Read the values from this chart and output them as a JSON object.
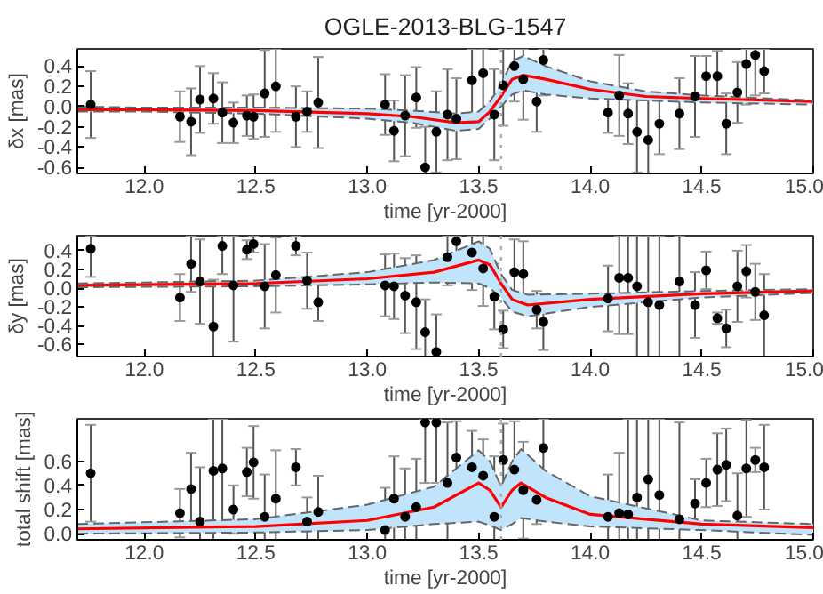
{
  "chart_data": [
    {
      "type": "scatter",
      "title": "OGLE-2013-BLG-1547",
      "xlabel": "time [yr-2000]",
      "ylabel": "δx [mas]",
      "xlim": [
        11.7,
        15.0
      ],
      "ylim": [
        -0.66,
        0.57
      ],
      "xticks": [
        {
          "value": 12,
          "label": "12.0"
        },
        {
          "value": 12.5,
          "label": "12.5"
        },
        {
          "value": 13,
          "label": "13.0"
        },
        {
          "value": 13.5,
          "label": "13.5"
        },
        {
          "value": 14,
          "label": "14.0"
        },
        {
          "value": 14.5,
          "label": "14.5"
        },
        {
          "value": 15,
          "label": "15.0"
        }
      ],
      "yticks": [
        {
          "value": -0.6,
          "label": "-0.6"
        },
        {
          "value": -0.4,
          "label": "-0.4"
        },
        {
          "value": -0.2,
          "label": "-0.2"
        },
        {
          "value": 0,
          "label": "0.0"
        },
        {
          "value": 0.2,
          "label": "0.2"
        },
        {
          "value": 0.4,
          "label": "0.4"
        }
      ],
      "marker": "circle",
      "grid": false,
      "ref_lines": [
        {
          "axis": "x",
          "value": 13.6,
          "color": "#aaaaaa",
          "line_style": "dotted"
        }
      ],
      "series": [
        {
          "type": "line",
          "color": "#ff0000",
          "marker": "none",
          "x": [
            11.7,
            12.0,
            12.5,
            13.0,
            13.2,
            13.4,
            13.5,
            13.55,
            13.6,
            13.65,
            13.7,
            13.8,
            14.0,
            14.25,
            14.5,
            15.0
          ],
          "values": [
            -0.03,
            -0.03,
            -0.04,
            -0.07,
            -0.1,
            -0.16,
            -0.15,
            -0.05,
            0.1,
            0.27,
            0.31,
            0.27,
            0.17,
            0.1,
            0.08,
            0.05
          ],
          "lower": [
            -0.05,
            -0.05,
            -0.07,
            -0.12,
            -0.16,
            -0.24,
            -0.22,
            -0.12,
            0.0,
            0.12,
            0.16,
            0.12,
            0.08,
            0.06,
            0.04,
            0.02
          ],
          "upper": [
            0.0,
            -0.01,
            -0.01,
            -0.02,
            -0.04,
            -0.07,
            -0.05,
            0.05,
            0.22,
            0.45,
            0.5,
            0.4,
            0.25,
            0.15,
            0.11,
            0.06
          ]
        },
        {
          "type": "line",
          "color": "#666666",
          "line_style": "dashed",
          "marker": "none",
          "x": [
            11.7,
            12.0,
            12.5,
            13.0,
            13.2,
            13.4,
            13.5,
            13.55,
            13.6,
            13.65,
            13.7,
            13.8,
            14.0,
            14.25,
            14.5,
            15.0
          ],
          "values": [
            -0.05,
            -0.05,
            -0.07,
            -0.12,
            -0.16,
            -0.24,
            -0.22,
            -0.12,
            0.0,
            0.12,
            0.16,
            0.12,
            0.08,
            0.06,
            0.04,
            0.02
          ]
        },
        {
          "type": "line",
          "color": "#666666",
          "line_style": "dashed",
          "marker": "none",
          "x": [
            11.7,
            12.0,
            12.5,
            13.0,
            13.2,
            13.4,
            13.5,
            13.55,
            13.6,
            13.65,
            13.7,
            13.8,
            14.0,
            14.25,
            14.5,
            15.0
          ],
          "values": [
            0.0,
            -0.01,
            -0.01,
            -0.02,
            -0.04,
            -0.07,
            -0.05,
            0.05,
            0.22,
            0.45,
            0.5,
            0.4,
            0.25,
            0.15,
            0.11,
            0.06
          ]
        },
        {
          "color": "#000000",
          "x": [
            11.76,
            12.16,
            12.21,
            12.25,
            12.31,
            12.35,
            12.4,
            12.46,
            12.49,
            12.54,
            12.59,
            12.68,
            12.73,
            12.78,
            13.08,
            13.12,
            13.17,
            13.22,
            13.26,
            13.31,
            13.36,
            13.4,
            13.47,
            13.52,
            13.57,
            13.61,
            13.66,
            13.7,
            13.76,
            13.79,
            14.08,
            14.13,
            14.17,
            14.21,
            14.26,
            14.31,
            14.4,
            14.47,
            14.52,
            14.57,
            14.61,
            14.66,
            14.7,
            14.74,
            14.78
          ],
          "values": [
            0.02,
            -0.1,
            -0.15,
            0.07,
            0.08,
            -0.06,
            -0.16,
            -0.09,
            -0.1,
            0.13,
            0.2,
            -0.1,
            -0.05,
            0.04,
            0.02,
            -0.24,
            -0.09,
            0.09,
            -0.6,
            -0.25,
            -0.08,
            -0.12,
            0.26,
            0.33,
            -0.08,
            0.21,
            0.4,
            0.27,
            0.05,
            0.46,
            -0.06,
            0.11,
            -0.07,
            -0.25,
            -0.33,
            -0.17,
            -0.07,
            0.1,
            0.3,
            0.3,
            -0.17,
            0.14,
            0.42,
            0.51,
            0.35
          ],
          "errors": [
            0.33,
            0.25,
            0.33,
            0.33,
            0.25,
            0.3,
            0.2,
            0.2,
            0.22,
            0.43,
            [
              -0.25,
              0.57
            ],
            0.3,
            0.2,
            0.45,
            0.3,
            0.3,
            0.4,
            0.3,
            [
              -0.66,
              -0.2
            ],
            0.4,
            0.45,
            0.4,
            [
              -0.14,
              0.57
            ],
            [
              -0.07,
              0.57
            ],
            0.45,
            [
              -0.19,
              0.57
            ],
            [
              0.05,
              0.57
            ],
            [
              -0.13,
              0.57
            ],
            0.3,
            [
              0.11,
              0.57
            ],
            0.2,
            0.4,
            0.3,
            0.4,
            [
              -0.66,
              0.07
            ],
            0.3,
            0.35,
            0.4,
            0.2,
            0.25,
            0.3,
            0.3,
            [
              0.02,
              0.57
            ],
            [
              0.11,
              0.57
            ],
            0.22
          ]
        }
      ]
    },
    {
      "type": "scatter",
      "xlabel": "time [yr-2000]",
      "ylabel": "δy [mas]",
      "xlim": [
        11.7,
        15.0
      ],
      "ylim": [
        -0.73,
        0.56
      ],
      "xticks": [
        {
          "value": 12,
          "label": "12.0"
        },
        {
          "value": 12.5,
          "label": "12.5"
        },
        {
          "value": 13,
          "label": "13.0"
        },
        {
          "value": 13.5,
          "label": "13.5"
        },
        {
          "value": 14,
          "label": "14.0"
        },
        {
          "value": 14.5,
          "label": "14.5"
        },
        {
          "value": 15,
          "label": "15.0"
        }
      ],
      "yticks": [
        {
          "value": -0.6,
          "label": "-0.6"
        },
        {
          "value": -0.4,
          "label": "-0.4"
        },
        {
          "value": -0.2,
          "label": "-0.2"
        },
        {
          "value": 0,
          "label": "0.0"
        },
        {
          "value": 0.2,
          "label": "0.2"
        },
        {
          "value": 0.4,
          "label": "0.4"
        }
      ],
      "marker": "circle",
      "grid": false,
      "ref_lines": [
        {
          "axis": "x",
          "value": 13.6,
          "color": "#aaaaaa",
          "line_style": "dotted"
        }
      ],
      "series": [
        {
          "type": "line",
          "color": "#ff0000",
          "marker": "none",
          "x": [
            11.7,
            12.5,
            13.0,
            13.3,
            13.5,
            13.55,
            13.6,
            13.65,
            13.72,
            14.0,
            14.5,
            15.0
          ],
          "values": [
            0.03,
            0.05,
            0.1,
            0.17,
            0.3,
            0.25,
            0.05,
            -0.12,
            -0.18,
            -0.12,
            -0.06,
            -0.03
          ],
          "lower": [
            0.01,
            0.02,
            0.04,
            0.06,
            0.05,
            0.0,
            -0.1,
            -0.25,
            -0.3,
            -0.2,
            -0.1,
            -0.05
          ],
          "upper": [
            0.05,
            0.08,
            0.17,
            0.3,
            0.5,
            0.42,
            0.15,
            -0.02,
            -0.07,
            -0.06,
            -0.03,
            -0.01
          ]
        },
        {
          "type": "line",
          "color": "#666666",
          "line_style": "dashed",
          "marker": "none",
          "x": [
            11.7,
            12.5,
            13.0,
            13.3,
            13.5,
            13.55,
            13.6,
            13.65,
            13.72,
            14.0,
            14.5,
            15.0
          ],
          "values": [
            0.01,
            0.02,
            0.04,
            0.06,
            0.05,
            0.0,
            -0.1,
            -0.25,
            -0.3,
            -0.2,
            -0.1,
            -0.05
          ]
        },
        {
          "type": "line",
          "color": "#666666",
          "line_style": "dashed",
          "marker": "none",
          "x": [
            11.7,
            12.5,
            13.0,
            13.3,
            13.5,
            13.55,
            13.6,
            13.65,
            13.72,
            14.0,
            14.5,
            15.0
          ],
          "values": [
            0.05,
            0.08,
            0.17,
            0.3,
            0.5,
            0.42,
            0.15,
            -0.02,
            -0.07,
            -0.06,
            -0.03,
            -0.01
          ]
        },
        {
          "color": "#000000",
          "x": [
            11.76,
            12.16,
            12.21,
            12.25,
            12.31,
            12.35,
            12.4,
            12.46,
            12.49,
            12.54,
            12.59,
            12.68,
            12.73,
            12.78,
            13.08,
            13.12,
            13.17,
            13.22,
            13.26,
            13.31,
            13.36,
            13.4,
            13.47,
            13.52,
            13.57,
            13.61,
            13.66,
            13.7,
            13.76,
            13.79,
            14.08,
            14.13,
            14.17,
            14.21,
            14.26,
            14.31,
            14.4,
            14.47,
            14.52,
            14.57,
            14.61,
            14.66,
            14.7,
            14.74,
            14.78
          ],
          "values": [
            0.42,
            -0.1,
            0.26,
            0.07,
            -0.41,
            0.45,
            0.03,
            0.41,
            0.47,
            0.02,
            0.14,
            0.45,
            0.08,
            -0.15,
            0.03,
            0.02,
            -0.08,
            -0.15,
            -0.47,
            -0.68,
            0.33,
            0.5,
            0.38,
            0.21,
            -0.09,
            -0.44,
            0.17,
            0.15,
            -0.23,
            -0.36,
            -0.11,
            0.11,
            0.11,
            0.02,
            -0.15,
            -0.18,
            0.07,
            -0.18,
            0.19,
            -0.32,
            -0.43,
            0.02,
            0.18,
            -0.04,
            -0.29
          ],
          "errors": [
            [
              0.12,
              0.56
            ],
            0.25,
            0.3,
            0.45,
            [
              -0.73,
              0.09
            ],
            [
              0.15,
              0.56
            ],
            [
              -0.57,
              0.56
            ],
            0.1,
            0.09,
            0.45,
            0.4,
            0.1,
            0.3,
            0.2,
            0.33,
            0.35,
            0.4,
            0.5,
            [
              -0.73,
              -0.12
            ],
            [
              -0.73,
              -0.28
            ],
            [
              0.03,
              0.56
            ],
            [
              0.2,
              0.56
            ],
            [
              -0.02,
              0.56
            ],
            [
              -0.19,
              0.56
            ],
            0.35,
            0.2,
            0.35,
            0.35,
            0.2,
            0.3,
            0.35,
            [
              -0.49,
              0.56
            ],
            [
              -0.49,
              0.56
            ],
            [
              -0.73,
              0.56
            ],
            [
              -0.73,
              0.56
            ],
            [
              -0.73,
              0.56
            ],
            [
              -0.73,
              0.56
            ],
            0.35,
            0.2,
            0.06,
            0.2,
            0.38,
            0.28,
            0.3,
            0.44
          ]
        }
      ]
    },
    {
      "type": "scatter",
      "xlabel": "time [yr-2000]",
      "ylabel": "total shift [mas]",
      "xlim": [
        11.7,
        15.0
      ],
      "ylim": [
        -0.05,
        0.95
      ],
      "xticks": [
        {
          "value": 12,
          "label": "12.0"
        },
        {
          "value": 12.5,
          "label": "12.5"
        },
        {
          "value": 13,
          "label": "13.0"
        },
        {
          "value": 13.5,
          "label": "13.5"
        },
        {
          "value": 14,
          "label": "14.0"
        },
        {
          "value": 14.5,
          "label": "14.5"
        },
        {
          "value": 15,
          "label": "15.0"
        }
      ],
      "yticks": [
        {
          "value": 0,
          "label": "0.0"
        },
        {
          "value": 0.2,
          "label": "0.2"
        },
        {
          "value": 0.4,
          "label": "0.4"
        },
        {
          "value": 0.6,
          "label": "0.6"
        }
      ],
      "marker": "circle",
      "grid": false,
      "ref_lines": [
        {
          "axis": "x",
          "value": 13.6,
          "color": "#aaaaaa",
          "line_style": "dotted"
        }
      ],
      "series": [
        {
          "type": "line",
          "color": "#ff0000",
          "marker": "none",
          "x": [
            11.7,
            12.5,
            13.0,
            13.3,
            13.5,
            13.55,
            13.6,
            13.65,
            13.69,
            13.8,
            14.0,
            14.5,
            15.0
          ],
          "values": [
            0.04,
            0.06,
            0.11,
            0.22,
            0.42,
            0.36,
            0.22,
            0.36,
            0.42,
            0.3,
            0.16,
            0.08,
            0.05
          ],
          "lower": [
            0.0,
            0.01,
            0.03,
            0.08,
            0.1,
            0.07,
            0.03,
            0.08,
            0.13,
            0.1,
            0.06,
            0.03,
            -0.01
          ],
          "upper": [
            0.08,
            0.12,
            0.24,
            0.39,
            0.69,
            0.6,
            0.39,
            0.6,
            0.7,
            0.52,
            0.31,
            0.11,
            0.08
          ]
        },
        {
          "type": "line",
          "color": "#666666",
          "line_style": "dashed",
          "marker": "none",
          "x": [
            11.7,
            12.5,
            13.0,
            13.3,
            13.5,
            13.55,
            13.6,
            13.65,
            13.69,
            13.8,
            14.0,
            14.5,
            15.0
          ],
          "values": [
            0.0,
            0.01,
            0.03,
            0.08,
            0.1,
            0.07,
            0.03,
            0.08,
            0.13,
            0.1,
            0.06,
            0.03,
            -0.01
          ]
        },
        {
          "type": "line",
          "color": "#666666",
          "line_style": "dashed",
          "marker": "none",
          "x": [
            11.7,
            12.5,
            13.0,
            13.3,
            13.5,
            13.55,
            13.6,
            13.65,
            13.69,
            13.8,
            14.0,
            14.5,
            15.0
          ],
          "values": [
            0.08,
            0.12,
            0.24,
            0.39,
            0.69,
            0.6,
            0.39,
            0.6,
            0.7,
            0.52,
            0.31,
            0.11,
            0.08
          ]
        },
        {
          "color": "#000000",
          "x": [
            11.76,
            12.16,
            12.21,
            12.25,
            12.31,
            12.35,
            12.4,
            12.46,
            12.49,
            12.54,
            12.59,
            12.68,
            12.73,
            12.78,
            13.08,
            13.12,
            13.17,
            13.22,
            13.26,
            13.31,
            13.36,
            13.4,
            13.47,
            13.52,
            13.57,
            13.61,
            13.66,
            13.7,
            13.76,
            13.79,
            14.08,
            14.13,
            14.17,
            14.21,
            14.26,
            14.31,
            14.4,
            14.47,
            14.52,
            14.57,
            14.61,
            14.66,
            14.7,
            14.74,
            14.78
          ],
          "values": [
            0.5,
            0.17,
            0.37,
            0.1,
            0.52,
            0.54,
            0.2,
            0.51,
            0.59,
            0.14,
            0.29,
            0.55,
            0.1,
            0.18,
            0.03,
            0.29,
            0.14,
            0.22,
            0.92,
            0.92,
            0.42,
            0.63,
            0.55,
            0.48,
            0.14,
            0.61,
            0.53,
            0.36,
            0.28,
            0.71,
            0.14,
            0.17,
            0.16,
            0.3,
            0.45,
            0.32,
            0.12,
            0.25,
            0.42,
            0.53,
            0.57,
            0.15,
            0.54,
            0.61,
            0.55
          ],
          "errors": [
            0.4,
            0.2,
            0.3,
            [
              -0.05,
              0.55
            ],
            [
              -0.05,
              0.95
            ],
            [
              0.04,
              0.95
            ],
            0.2,
            0.2,
            0.3,
            [
              -0.05,
              0.49
            ],
            [
              -0.05,
              0.69
            ],
            0.15,
            0.2,
            0.3,
            [
              -0.05,
              0.38
            ],
            0.35,
            [
              -0.05,
              0.54
            ],
            [
              -0.05,
              0.62
            ],
            [
              0.42,
              0.95
            ],
            [
              0.42,
              0.95
            ],
            [
              -0.05,
              0.92
            ],
            0.3,
            0.3,
            0.3,
            [
              -0.05,
              0.64
            ],
            0.3,
            0.4,
            0.4,
            0.2,
            [
              0.36,
              0.95
            ],
            [
              -0.05,
              0.49
            ],
            [
              -0.05,
              0.67
            ],
            [
              -0.05,
              0.95
            ],
            [
              -0.05,
              0.95
            ],
            [
              -0.05,
              0.95
            ],
            [
              -0.05,
              0.95
            ],
            [
              -0.05,
              0.92
            ],
            0.2,
            0.2,
            0.3,
            0.3,
            [
              -0.05,
              0.5
            ],
            0.4,
            0.1,
            0.35
          ]
        }
      ]
    }
  ]
}
